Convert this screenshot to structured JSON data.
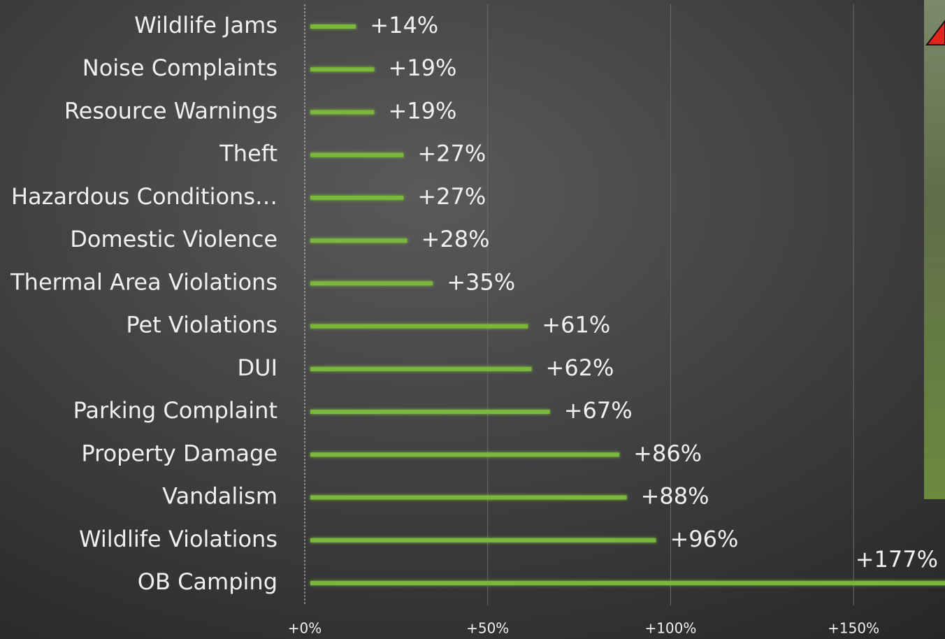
{
  "chart_data": {
    "type": "bar",
    "orientation": "horizontal",
    "categories": [
      "Wildlife Jams",
      "Noise Complaints",
      "Resource Warnings",
      "Theft",
      "Hazardous Conditions…",
      "Domestic Violence",
      "Thermal Area Violations",
      "Pet Violations",
      "DUI",
      "Parking Complaint",
      "Property Damage",
      "Vandalism",
      "Wildlife Violations",
      "OB Camping"
    ],
    "values": [
      14,
      19,
      19,
      27,
      27,
      28,
      35,
      61,
      62,
      67,
      86,
      88,
      96,
      177
    ],
    "value_labels": [
      "+14%",
      "+19%",
      "+19%",
      "+27%",
      "+27%",
      "+28%",
      "+35%",
      "+61%",
      "+62%",
      "+67%",
      "+86%",
      "+88%",
      "+96%",
      "+177%"
    ],
    "color": "#7ab83a",
    "xlim": [
      0,
      175
    ],
    "xticks": [
      {
        "value": 0,
        "label": "+0%"
      },
      {
        "value": 50,
        "label": "+50%"
      },
      {
        "value": 100,
        "label": "+100%"
      },
      {
        "value": 150,
        "label": "+150%"
      }
    ],
    "grid": true
  }
}
